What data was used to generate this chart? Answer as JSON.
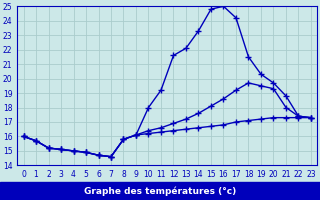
{
  "xlabel": "Graphe des températures (°c)",
  "x": [
    0,
    1,
    2,
    3,
    4,
    5,
    6,
    7,
    8,
    9,
    10,
    11,
    12,
    13,
    14,
    15,
    16,
    17,
    18,
    19,
    20,
    21,
    22,
    23
  ],
  "line1": [
    16.0,
    15.7,
    15.2,
    15.1,
    15.0,
    14.9,
    14.7,
    14.6,
    15.8,
    16.1,
    18.0,
    19.2,
    21.6,
    22.1,
    23.3,
    24.8,
    25.0,
    24.2,
    21.5,
    20.3,
    19.7,
    18.8,
    17.4,
    17.3
  ],
  "line2": [
    16.0,
    15.7,
    15.2,
    15.1,
    15.0,
    14.9,
    14.7,
    14.6,
    15.8,
    16.1,
    16.4,
    16.6,
    16.9,
    17.2,
    17.6,
    18.1,
    18.6,
    19.2,
    19.7,
    19.5,
    19.3,
    18.0,
    17.4,
    17.3
  ],
  "line3": [
    16.0,
    15.7,
    15.2,
    15.1,
    15.0,
    14.9,
    14.7,
    14.6,
    15.8,
    16.1,
    16.2,
    16.3,
    16.4,
    16.5,
    16.6,
    16.7,
    16.8,
    17.0,
    17.1,
    17.2,
    17.3,
    17.3,
    17.3,
    17.3
  ],
  "line_color": "#0000bb",
  "bg_color": "#cce8e8",
  "grid_color": "#aacccc",
  "ylim": [
    14,
    25
  ],
  "yticks": [
    14,
    15,
    16,
    17,
    18,
    19,
    20,
    21,
    22,
    23,
    24,
    25
  ],
  "xticks": [
    0,
    1,
    2,
    3,
    4,
    5,
    6,
    7,
    8,
    9,
    10,
    11,
    12,
    13,
    14,
    15,
    16,
    17,
    18,
    19,
    20,
    21,
    22,
    23
  ],
  "marker": "+",
  "markersize": 4,
  "linewidth": 1.0,
  "xlabel_bg": "#0000bb",
  "xlabel_fontsize": 6.5,
  "tick_fontsize": 5.5
}
